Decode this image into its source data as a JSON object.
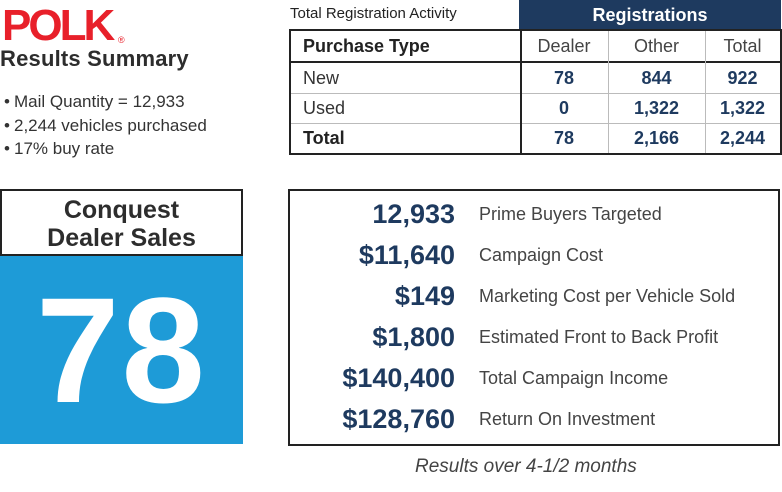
{
  "logo": {
    "text": "POLK",
    "registered": "®"
  },
  "summary": {
    "title": "Results Summary",
    "bullets": [
      "Mail Quantity = 12,933",
      "2,244 vehicles purchased",
      "17% buy rate"
    ]
  },
  "registration": {
    "caption": "Total Registration Activity",
    "group_header": "Registrations",
    "columns": [
      "Purchase Type",
      "Dealer",
      "Other",
      "Total"
    ],
    "rows": [
      {
        "type": "New",
        "dealer": "78",
        "other": "844",
        "total": "922"
      },
      {
        "type": "Used",
        "dealer": "0",
        "other": "1,322",
        "total": "1,322"
      },
      {
        "type": "Total",
        "dealer": "78",
        "other": "2,166",
        "total": "2,244"
      }
    ]
  },
  "conquest": {
    "title_line1": "Conquest",
    "title_line2": "Dealer Sales",
    "value": "78"
  },
  "metrics": [
    {
      "value": "12,933",
      "label": "Prime Buyers Targeted"
    },
    {
      "value": "$11,640",
      "label": "Campaign Cost"
    },
    {
      "value": "$149",
      "label": "Marketing Cost per Vehicle Sold"
    },
    {
      "value": "$1,800",
      "label": "Estimated Front to Back Profit"
    },
    {
      "value": "$140,400",
      "label": "Total Campaign Income"
    },
    {
      "value": "$128,760",
      "label": "Return On Investment"
    }
  ],
  "footnote": "Results over 4-1/2 months",
  "colors": {
    "brand_red": "#e8202a",
    "navy": "#1e3a5f",
    "blue_tile": "#1e9bd7"
  }
}
